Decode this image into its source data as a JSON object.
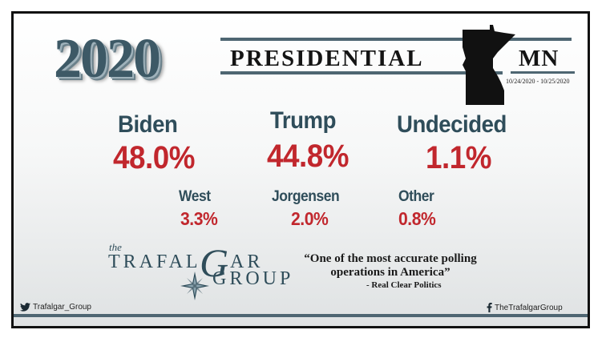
{
  "header": {
    "year": "2020",
    "title": "PRESIDENTIAL",
    "state": "MN",
    "dates": "10/24/2020 - 10/25/2020"
  },
  "results": {
    "biden": {
      "name": "Biden",
      "pct": "48.0%"
    },
    "trump": {
      "name": "Trump",
      "pct": "44.8%"
    },
    "undecided": {
      "name": "Undecided",
      "pct": "1.1%"
    },
    "west": {
      "name": "West",
      "pct": "3.3%"
    },
    "jorgensen": {
      "name": "Jorgensen",
      "pct": "2.0%"
    },
    "other": {
      "name": "Other",
      "pct": "0.8%"
    }
  },
  "logo": {
    "the": "the",
    "word1": "TRAFAL",
    "letter_g": "G",
    "word1_tail": "AR",
    "word2": "GROUP"
  },
  "quote": {
    "line1": "“One of the most accurate polling",
    "line2": "operations in America”",
    "source": "- Real Clear Politics"
  },
  "footer": {
    "twitter": "Trafalgar_Group",
    "facebook": "TheTrafalgarGroup"
  },
  "icons": {
    "twitter": "twitter-icon",
    "facebook": "facebook-icon",
    "state_map": "minnesota-silhouette-icon",
    "compass": "compass-rose-icon"
  },
  "colors": {
    "party_red": "#c1272d",
    "slate": "#2f4d5a",
    "bar": "#4e6672"
  }
}
